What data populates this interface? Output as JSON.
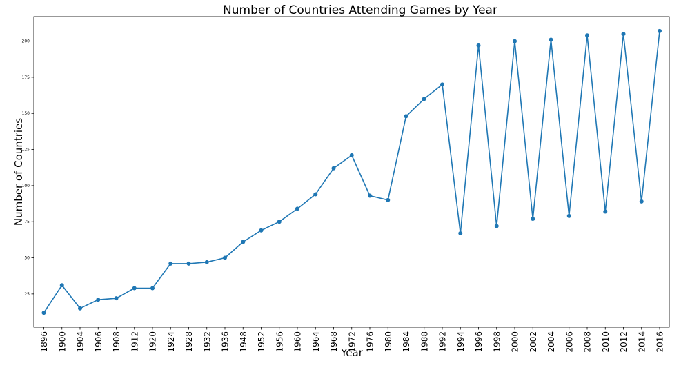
{
  "chart_data": {
    "type": "line",
    "title": "Number of Countries Attending Games by Year",
    "xlabel": "Year",
    "ylabel": "Number of Countries",
    "categories": [
      "1896",
      "1900",
      "1904",
      "1906",
      "1908",
      "1912",
      "1920",
      "1924",
      "1928",
      "1932",
      "1936",
      "1948",
      "1952",
      "1956",
      "1960",
      "1964",
      "1968",
      "1972",
      "1976",
      "1980",
      "1984",
      "1988",
      "1992",
      "1994",
      "1996",
      "1998",
      "2000",
      "2002",
      "2004",
      "2006",
      "2008",
      "2010",
      "2012",
      "2014",
      "2016"
    ],
    "series": [
      {
        "values": [
          12,
          31,
          15,
          21,
          22,
          29,
          29,
          46,
          46,
          47,
          50,
          61,
          69,
          75,
          84,
          94,
          112,
          121,
          93,
          90,
          148,
          160,
          170,
          67,
          197,
          72,
          200,
          77,
          201,
          79,
          204,
          82,
          205,
          89,
          207
        ],
        "color": "#1f77b4",
        "marker": "circle"
      }
    ],
    "ylim": [
      2,
      217
    ],
    "yticks": [
      25,
      50,
      75,
      100,
      125,
      150,
      175,
      200
    ],
    "grid": false,
    "legend": "none"
  }
}
